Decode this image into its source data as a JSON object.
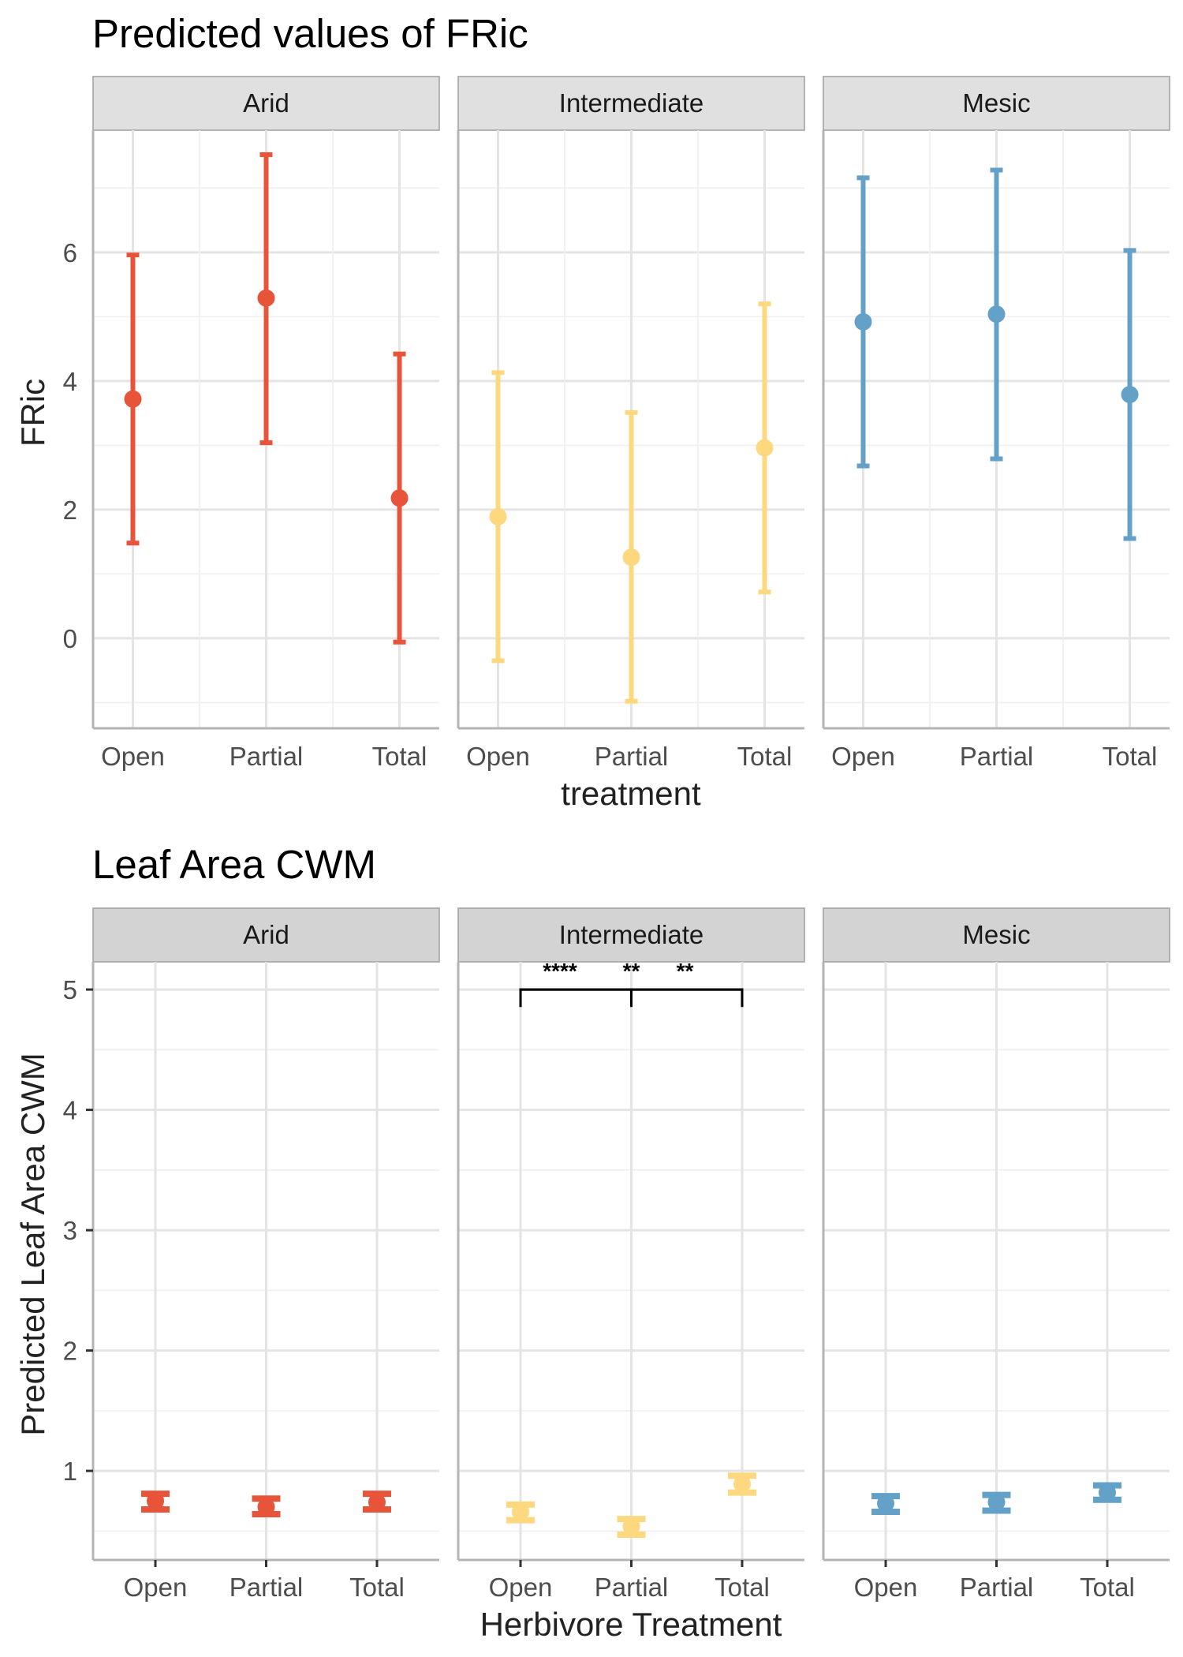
{
  "chart_data": [
    {
      "type": "scatter",
      "title": "Predicted values of FRic",
      "xlabel": "treatment",
      "ylabel": "FRic",
      "categories": [
        "Open",
        "Partial",
        "Total"
      ],
      "ylim": [
        -1.4,
        7.9
      ],
      "yticks": [
        0,
        2,
        4,
        6
      ],
      "strip_fill": "#e0e0e0",
      "panels": [
        {
          "name": "Arid",
          "color": "#e8543a",
          "points": [
            {
              "x": "Open",
              "y": 3.72,
              "lower": 1.48,
              "upper": 5.96
            },
            {
              "x": "Partial",
              "y": 5.29,
              "lower": 3.04,
              "upper": 7.52
            },
            {
              "x": "Total",
              "y": 2.18,
              "lower": -0.06,
              "upper": 4.42
            }
          ]
        },
        {
          "name": "Intermediate",
          "color": "#fdd87f",
          "points": [
            {
              "x": "Open",
              "y": 1.89,
              "lower": -0.35,
              "upper": 4.13
            },
            {
              "x": "Partial",
              "y": 1.26,
              "lower": -0.98,
              "upper": 3.51
            },
            {
              "x": "Total",
              "y": 2.96,
              "lower": 0.72,
              "upper": 5.2
            }
          ]
        },
        {
          "name": "Mesic",
          "color": "#64a1c9",
          "points": [
            {
              "x": "Open",
              "y": 4.92,
              "lower": 2.68,
              "upper": 7.16
            },
            {
              "x": "Partial",
              "y": 5.04,
              "lower": 2.79,
              "upper": 7.28
            },
            {
              "x": "Total",
              "y": 3.79,
              "lower": 1.55,
              "upper": 6.03
            }
          ]
        }
      ]
    },
    {
      "type": "scatter",
      "title": "Leaf Area CWM",
      "xlabel": "Herbivore Treatment",
      "ylabel": "Predicted Leaf Area CWM",
      "categories": [
        "Open",
        "Partial",
        "Total"
      ],
      "ylim": [
        0.26,
        5.23
      ],
      "yticks": [
        1,
        2,
        3,
        4,
        5
      ],
      "strip_fill": "#d3d3d3",
      "panels": [
        {
          "name": "Arid",
          "color": "#e8543a",
          "points": [
            {
              "x": "Open",
              "y": 0.75,
              "lower": 0.68,
              "upper": 0.81
            },
            {
              "x": "Partial",
              "y": 0.7,
              "lower": 0.64,
              "upper": 0.77
            },
            {
              "x": "Total",
              "y": 0.74,
              "lower": 0.68,
              "upper": 0.81
            }
          ]
        },
        {
          "name": "Intermediate",
          "color": "#fdd87f",
          "points": [
            {
              "x": "Open",
              "y": 0.66,
              "lower": 0.59,
              "upper": 0.72
            },
            {
              "x": "Partial",
              "y": 0.54,
              "lower": 0.47,
              "upper": 0.6
            },
            {
              "x": "Total",
              "y": 0.89,
              "lower": 0.82,
              "upper": 0.96
            }
          ],
          "significance": {
            "y": 5.0,
            "brackets": [
              {
                "from": "Open",
                "to": "Partial",
                "label": "****"
              },
              {
                "from": "Partial",
                "to": "Total",
                "label": "**"
              },
              {
                "from": "Open",
                "to": "Total",
                "label": "**"
              }
            ]
          }
        },
        {
          "name": "Mesic",
          "color": "#64a1c9",
          "points": [
            {
              "x": "Open",
              "y": 0.73,
              "lower": 0.66,
              "upper": 0.79
            },
            {
              "x": "Partial",
              "y": 0.74,
              "lower": 0.67,
              "upper": 0.8
            },
            {
              "x": "Total",
              "y": 0.82,
              "lower": 0.76,
              "upper": 0.88
            }
          ]
        }
      ]
    }
  ]
}
